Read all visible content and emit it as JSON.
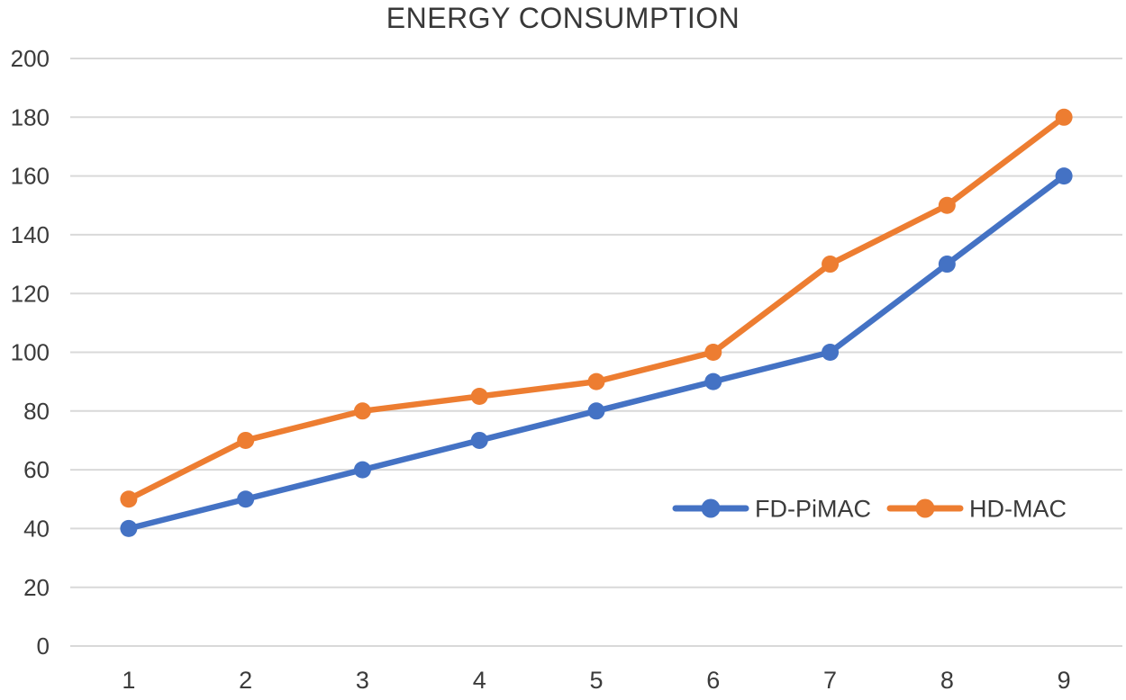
{
  "chart_data": {
    "type": "line",
    "title": "ENERGY CONSUMPTION",
    "categories": [
      "1",
      "2",
      "3",
      "4",
      "5",
      "6",
      "7",
      "8",
      "9"
    ],
    "series": [
      {
        "name": "FD-PiMAC",
        "color": "#4472C4",
        "values": [
          40,
          50,
          60,
          70,
          80,
          90,
          100,
          130,
          160
        ]
      },
      {
        "name": "HD-MAC",
        "color": "#ED7D31",
        "values": [
          50,
          70,
          80,
          85,
          90,
          100,
          130,
          150,
          180
        ]
      }
    ],
    "ylim": [
      0,
      200
    ],
    "ytick_step": 20,
    "ytick_labels": [
      "0",
      "20",
      "40",
      "60",
      "80",
      "100",
      "120",
      "140",
      "160",
      "180",
      "200"
    ],
    "grid": "horizontal-only",
    "gridline_color": "#D9D9D9",
    "text_color": "#3B3B3B",
    "legend_position": "inside-lower-right",
    "legend_entries": [
      "FD-PiMAC",
      "HD-MAC"
    ],
    "marker_style": "filled-circle"
  }
}
